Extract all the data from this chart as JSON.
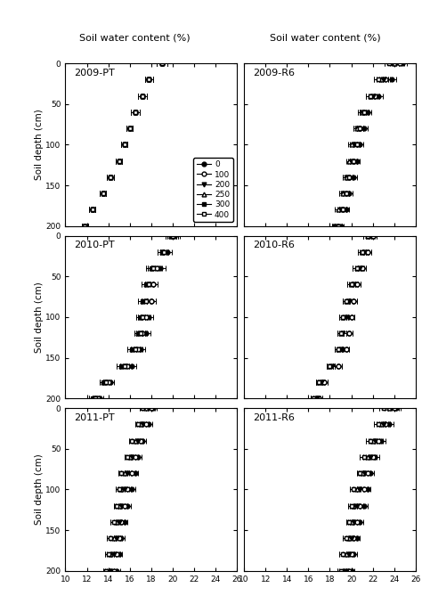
{
  "col_titles": [
    "Soil water content (%)",
    "Soil water content (%)"
  ],
  "ylabel": "Soil depth (cm)",
  "xlim": [
    10,
    26
  ],
  "ylim": [
    200,
    0
  ],
  "xticks": [
    10,
    12,
    14,
    16,
    18,
    20,
    22,
    24,
    26
  ],
  "yticks": [
    0,
    50,
    100,
    150,
    200
  ],
  "legend_labels": [
    "0",
    "100",
    "200",
    "250",
    "300",
    "400"
  ],
  "series_markers": [
    "o",
    "o",
    "v",
    "^",
    "s",
    "s"
  ],
  "series_fillstyle": [
    "full",
    "none",
    "full",
    "none",
    "full",
    "none"
  ],
  "depths": [
    0,
    20,
    40,
    60,
    80,
    100,
    120,
    140,
    160,
    180,
    200
  ],
  "data": {
    "2009-PT": {
      "0": {
        "swc": [
          19.0,
          17.8,
          17.2,
          16.5,
          16.0,
          15.5,
          15.0,
          14.2,
          13.5,
          12.5,
          11.8
        ],
        "err": [
          0.5,
          0.4,
          0.4,
          0.4,
          0.3,
          0.3,
          0.3,
          0.3,
          0.3,
          0.3,
          0.3
        ]
      },
      "100": {
        "swc": [
          19.0,
          17.8,
          17.2,
          16.5,
          16.0,
          15.5,
          15.0,
          14.2,
          13.5,
          12.5,
          11.8
        ],
        "err": [
          0.5,
          0.4,
          0.4,
          0.4,
          0.3,
          0.3,
          0.3,
          0.3,
          0.3,
          0.3,
          0.3
        ]
      },
      "200": {
        "swc": [
          19.0,
          17.8,
          17.2,
          16.5,
          16.0,
          15.5,
          15.0,
          14.2,
          13.5,
          12.5,
          11.8
        ],
        "err": [
          0.5,
          0.4,
          0.4,
          0.4,
          0.3,
          0.3,
          0.3,
          0.3,
          0.3,
          0.3,
          0.3
        ]
      },
      "250": {
        "swc": [
          19.0,
          17.8,
          17.2,
          16.5,
          16.0,
          15.5,
          15.0,
          14.2,
          13.5,
          12.5,
          11.8
        ],
        "err": [
          0.5,
          0.4,
          0.4,
          0.4,
          0.3,
          0.3,
          0.3,
          0.3,
          0.3,
          0.3,
          0.3
        ]
      },
      "300": {
        "swc": [
          19.0,
          17.8,
          17.2,
          16.5,
          16.0,
          15.5,
          15.0,
          14.2,
          13.5,
          12.5,
          11.8
        ],
        "err": [
          0.5,
          0.4,
          0.4,
          0.4,
          0.3,
          0.3,
          0.3,
          0.3,
          0.3,
          0.3,
          0.3
        ]
      },
      "400": {
        "swc": [
          19.0,
          17.8,
          17.2,
          16.5,
          16.0,
          15.5,
          15.0,
          14.2,
          13.5,
          12.5,
          11.8
        ],
        "err": [
          0.5,
          0.4,
          0.4,
          0.4,
          0.3,
          0.3,
          0.3,
          0.3,
          0.3,
          0.3,
          0.3
        ]
      }
    },
    "2009-R6": {
      "0": {
        "swc": [
          24.8,
          23.8,
          22.5,
          21.5,
          21.2,
          20.8,
          20.5,
          20.2,
          19.8,
          19.5,
          19.0
        ],
        "err": [
          0.4,
          0.4,
          0.4,
          0.4,
          0.3,
          0.3,
          0.3,
          0.3,
          0.3,
          0.3,
          0.3
        ]
      },
      "100": {
        "swc": [
          24.5,
          23.2,
          22.2,
          21.2,
          20.8,
          20.5,
          20.2,
          19.8,
          19.5,
          19.2,
          18.8
        ],
        "err": [
          0.4,
          0.4,
          0.4,
          0.4,
          0.3,
          0.3,
          0.3,
          0.3,
          0.3,
          0.3,
          0.3
        ]
      },
      "200": {
        "swc": [
          24.2,
          23.0,
          22.0,
          21.0,
          20.5,
          20.2,
          20.0,
          19.5,
          19.2,
          19.0,
          18.5
        ],
        "err": [
          0.4,
          0.4,
          0.4,
          0.4,
          0.3,
          0.3,
          0.3,
          0.3,
          0.3,
          0.3,
          0.3
        ]
      },
      "250": {
        "swc": [
          24.0,
          22.8,
          21.8,
          21.0,
          20.5,
          20.0,
          19.8,
          19.5,
          19.2,
          18.8,
          18.5
        ],
        "err": [
          0.4,
          0.4,
          0.4,
          0.4,
          0.3,
          0.3,
          0.3,
          0.3,
          0.3,
          0.3,
          0.3
        ]
      },
      "300": {
        "swc": [
          23.5,
          22.5,
          21.8,
          21.2,
          20.8,
          20.5,
          20.2,
          19.8,
          19.5,
          19.2,
          18.8
        ],
        "err": [
          0.4,
          0.4,
          0.4,
          0.4,
          0.3,
          0.3,
          0.3,
          0.3,
          0.3,
          0.3,
          0.3
        ]
      },
      "400": {
        "swc": [
          23.5,
          22.5,
          21.8,
          21.2,
          20.8,
          20.5,
          20.2,
          19.8,
          19.5,
          19.2,
          18.8
        ],
        "err": [
          0.4,
          0.4,
          0.4,
          0.4,
          0.3,
          0.3,
          0.3,
          0.3,
          0.3,
          0.3,
          0.3
        ]
      }
    },
    "2010-PT": {
      "0": {
        "swc": [
          20.2,
          19.5,
          18.8,
          18.2,
          18.0,
          17.8,
          17.5,
          17.0,
          16.2,
          14.2,
          13.2
        ],
        "err": [
          0.5,
          0.4,
          0.5,
          0.4,
          0.4,
          0.4,
          0.4,
          0.4,
          0.4,
          0.3,
          0.3
        ]
      },
      "100": {
        "swc": [
          20.0,
          19.2,
          18.5,
          18.2,
          18.0,
          17.5,
          17.2,
          16.8,
          15.8,
          14.0,
          13.0
        ],
        "err": [
          0.5,
          0.4,
          0.5,
          0.4,
          0.4,
          0.4,
          0.4,
          0.4,
          0.4,
          0.3,
          0.3
        ]
      },
      "200": {
        "swc": [
          19.8,
          19.0,
          18.2,
          17.8,
          17.5,
          17.2,
          17.0,
          16.5,
          15.5,
          13.8,
          12.8
        ],
        "err": [
          0.5,
          0.4,
          0.5,
          0.4,
          0.4,
          0.4,
          0.4,
          0.4,
          0.4,
          0.3,
          0.3
        ]
      },
      "250": {
        "swc": [
          19.8,
          19.0,
          18.0,
          17.5,
          17.2,
          17.0,
          16.8,
          16.2,
          15.2,
          13.5,
          12.5
        ],
        "err": [
          0.5,
          0.4,
          0.5,
          0.4,
          0.4,
          0.4,
          0.4,
          0.4,
          0.4,
          0.3,
          0.3
        ]
      },
      "300": {
        "swc": [
          19.8,
          19.0,
          18.0,
          17.5,
          17.2,
          17.0,
          16.8,
          16.2,
          15.2,
          13.5,
          12.5
        ],
        "err": [
          0.5,
          0.4,
          0.5,
          0.4,
          0.4,
          0.4,
          0.4,
          0.4,
          0.4,
          0.3,
          0.3
        ]
      },
      "400": {
        "swc": [
          20.0,
          19.2,
          18.2,
          17.8,
          17.5,
          17.2,
          17.0,
          16.5,
          15.5,
          13.8,
          12.8
        ],
        "err": [
          0.5,
          0.4,
          0.5,
          0.4,
          0.4,
          0.4,
          0.4,
          0.4,
          0.4,
          0.3,
          0.3
        ]
      }
    },
    "2010-R6": {
      "0": {
        "swc": [
          22.0,
          21.5,
          21.0,
          20.5,
          20.2,
          20.0,
          19.8,
          19.5,
          18.8,
          17.5,
          17.0
        ],
        "err": [
          0.4,
          0.4,
          0.4,
          0.4,
          0.3,
          0.3,
          0.3,
          0.3,
          0.3,
          0.3,
          0.3
        ]
      },
      "100": {
        "swc": [
          22.0,
          21.5,
          21.0,
          20.5,
          20.2,
          20.0,
          19.8,
          19.5,
          18.8,
          17.5,
          17.0
        ],
        "err": [
          0.4,
          0.4,
          0.4,
          0.4,
          0.3,
          0.3,
          0.3,
          0.3,
          0.3,
          0.3,
          0.3
        ]
      },
      "200": {
        "swc": [
          21.8,
          21.2,
          20.8,
          20.2,
          19.8,
          19.5,
          19.2,
          19.0,
          18.2,
          17.2,
          16.8
        ],
        "err": [
          0.4,
          0.4,
          0.4,
          0.4,
          0.3,
          0.3,
          0.3,
          0.3,
          0.3,
          0.3,
          0.3
        ]
      },
      "250": {
        "swc": [
          21.5,
          21.0,
          20.5,
          20.0,
          19.5,
          19.2,
          19.0,
          18.8,
          18.0,
          17.0,
          16.5
        ],
        "err": [
          0.4,
          0.4,
          0.4,
          0.4,
          0.3,
          0.3,
          0.3,
          0.3,
          0.3,
          0.3,
          0.3
        ]
      },
      "300": {
        "swc": [
          21.5,
          21.0,
          20.5,
          20.0,
          19.5,
          19.2,
          19.0,
          18.8,
          18.0,
          17.0,
          16.5
        ],
        "err": [
          0.4,
          0.4,
          0.4,
          0.4,
          0.3,
          0.3,
          0.3,
          0.3,
          0.3,
          0.3,
          0.3
        ]
      },
      "400": {
        "swc": [
          21.5,
          21.0,
          20.5,
          20.0,
          19.5,
          19.2,
          19.0,
          18.8,
          18.0,
          17.0,
          16.5
        ],
        "err": [
          0.4,
          0.4,
          0.4,
          0.4,
          0.3,
          0.3,
          0.3,
          0.3,
          0.3,
          0.3,
          0.3
        ]
      }
    },
    "2011-PT": {
      "0": {
        "swc": [
          18.2,
          17.8,
          17.2,
          16.8,
          16.5,
          16.2,
          15.8,
          15.5,
          15.2,
          15.0,
          14.8
        ],
        "err": [
          0.3,
          0.3,
          0.3,
          0.3,
          0.3,
          0.3,
          0.3,
          0.3,
          0.3,
          0.3,
          0.3
        ]
      },
      "100": {
        "swc": [
          18.0,
          17.5,
          17.0,
          16.5,
          16.2,
          15.8,
          15.5,
          15.2,
          15.0,
          14.8,
          14.5
        ],
        "err": [
          0.3,
          0.3,
          0.3,
          0.3,
          0.3,
          0.3,
          0.3,
          0.3,
          0.3,
          0.3,
          0.3
        ]
      },
      "200": {
        "swc": [
          17.8,
          17.2,
          16.8,
          16.2,
          15.8,
          15.5,
          15.2,
          15.0,
          14.8,
          14.5,
          14.2
        ],
        "err": [
          0.3,
          0.3,
          0.3,
          0.3,
          0.3,
          0.3,
          0.3,
          0.3,
          0.3,
          0.3,
          0.3
        ]
      },
      "250": {
        "swc": [
          17.5,
          17.0,
          16.5,
          16.0,
          15.5,
          15.2,
          15.0,
          14.8,
          14.5,
          14.2,
          14.0
        ],
        "err": [
          0.3,
          0.3,
          0.3,
          0.3,
          0.3,
          0.3,
          0.3,
          0.3,
          0.3,
          0.3,
          0.3
        ]
      },
      "300": {
        "swc": [
          17.2,
          16.8,
          16.2,
          15.8,
          15.2,
          15.0,
          14.8,
          14.5,
          14.2,
          14.0,
          13.8
        ],
        "err": [
          0.3,
          0.3,
          0.3,
          0.3,
          0.3,
          0.3,
          0.3,
          0.3,
          0.3,
          0.3,
          0.3
        ]
      },
      "400": {
        "swc": [
          17.2,
          16.8,
          16.2,
          15.8,
          15.2,
          15.0,
          14.8,
          14.5,
          14.2,
          14.0,
          13.8
        ],
        "err": [
          0.3,
          0.3,
          0.3,
          0.3,
          0.3,
          0.3,
          0.3,
          0.3,
          0.3,
          0.3,
          0.3
        ]
      }
    },
    "2011-R6": {
      "0": {
        "swc": [
          24.2,
          23.5,
          22.8,
          22.2,
          21.8,
          21.5,
          21.2,
          20.8,
          20.5,
          20.2,
          20.0
        ],
        "err": [
          0.4,
          0.4,
          0.4,
          0.4,
          0.3,
          0.3,
          0.3,
          0.3,
          0.3,
          0.3,
          0.3
        ]
      },
      "100": {
        "swc": [
          24.0,
          23.2,
          22.5,
          22.0,
          21.5,
          21.2,
          20.8,
          20.5,
          20.2,
          20.0,
          19.8
        ],
        "err": [
          0.4,
          0.4,
          0.4,
          0.4,
          0.3,
          0.3,
          0.3,
          0.3,
          0.3,
          0.3,
          0.3
        ]
      },
      "200": {
        "swc": [
          23.8,
          23.0,
          22.2,
          21.8,
          21.2,
          20.8,
          20.5,
          20.2,
          20.0,
          19.8,
          19.5
        ],
        "err": [
          0.4,
          0.4,
          0.4,
          0.4,
          0.3,
          0.3,
          0.3,
          0.3,
          0.3,
          0.3,
          0.3
        ]
      },
      "250": {
        "swc": [
          23.5,
          22.8,
          22.0,
          21.5,
          21.0,
          20.5,
          20.2,
          20.0,
          19.8,
          19.5,
          19.2
        ],
        "err": [
          0.4,
          0.4,
          0.4,
          0.4,
          0.3,
          0.3,
          0.3,
          0.3,
          0.3,
          0.3,
          0.3
        ]
      },
      "300": {
        "swc": [
          23.0,
          22.5,
          21.8,
          21.2,
          20.8,
          20.2,
          20.0,
          19.8,
          19.5,
          19.2,
          19.0
        ],
        "err": [
          0.4,
          0.4,
          0.4,
          0.4,
          0.3,
          0.3,
          0.3,
          0.3,
          0.3,
          0.3,
          0.3
        ]
      },
      "400": {
        "swc": [
          23.0,
          22.5,
          21.8,
          21.2,
          20.8,
          20.2,
          20.0,
          19.8,
          19.5,
          19.2,
          19.0
        ],
        "err": [
          0.4,
          0.4,
          0.4,
          0.4,
          0.3,
          0.3,
          0.3,
          0.3,
          0.3,
          0.3,
          0.3
        ]
      }
    }
  }
}
